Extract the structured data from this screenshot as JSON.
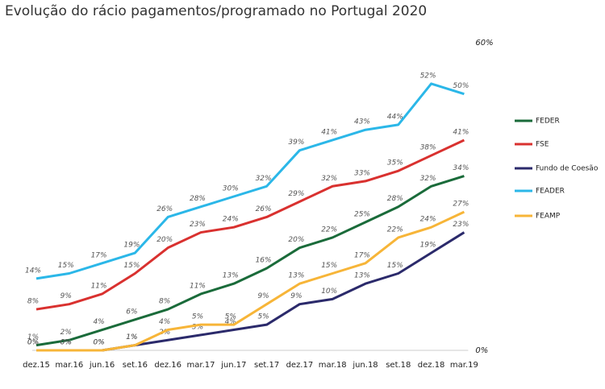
{
  "chart_data": {
    "type": "line",
    "title": "Evolução do rácio pagamentos/programado no Portugal 2020",
    "categories": [
      "dez.15",
      "mar.16",
      "jun.16",
      "set.16",
      "dez.16",
      "mar.17",
      "jun.17",
      "set.17",
      "dez.17",
      "mar.18",
      "jun.18",
      "set.18",
      "dez.18",
      "mar.19"
    ],
    "ylim": [
      0,
      60
    ],
    "yticks": [
      {
        "value": 0,
        "label": "0%"
      },
      {
        "value": 60,
        "label": "60%"
      }
    ],
    "grid": false,
    "legend": "right",
    "series": [
      {
        "name": "FEDER",
        "color": "#1a6b3a",
        "values": [
          1,
          2,
          4,
          6,
          8,
          11,
          13,
          16,
          20,
          22,
          25,
          28,
          32,
          34
        ],
        "value_labels": [
          "1%",
          "2%",
          "4%",
          "6%",
          "8%",
          "11%",
          "13%",
          "16%",
          "20%",
          "22%",
          "25%",
          "28%",
          "32%",
          "34%"
        ]
      },
      {
        "name": "FSE",
        "color": "#d9312f",
        "values": [
          8,
          9,
          11,
          15,
          20,
          23,
          24,
          26,
          29,
          32,
          33,
          35,
          38,
          41
        ],
        "value_labels": [
          "8%",
          "9%",
          "11%",
          "15%",
          "20%",
          "23%",
          "24%",
          "26%",
          "29%",
          "32%",
          "33%",
          "35%",
          "38%",
          "41%"
        ]
      },
      {
        "name": "Fundo de Coesão",
        "color": "#2b2a6b",
        "values": [
          0,
          0,
          0,
          1,
          2,
          3,
          4,
          5,
          9,
          10,
          13,
          15,
          19,
          23
        ],
        "value_labels": [
          "0%",
          "0%",
          "0%",
          "1%",
          "2%",
          "3%",
          "4%",
          "5%",
          "9%",
          "10%",
          "13%",
          "15%",
          "19%",
          "23%"
        ]
      },
      {
        "name": "FEADER",
        "color": "#2bb7e8",
        "values": [
          14,
          15,
          17,
          19,
          26,
          28,
          30,
          32,
          39,
          41,
          43,
          44,
          52,
          50
        ],
        "value_labels": [
          "14%",
          "15%",
          "17%",
          "19%",
          "26%",
          "28%",
          "30%",
          "32%",
          "39%",
          "41%",
          "43%",
          "44%",
          "52%",
          "50%"
        ]
      },
      {
        "name": "FEAMP",
        "color": "#f7b538",
        "values": [
          0,
          0,
          0,
          1,
          4,
          5,
          5,
          9,
          13,
          15,
          17,
          22,
          24,
          27
        ],
        "value_labels": [
          "0%",
          "0%",
          "0%",
          "1%",
          "4%",
          "5%",
          "5%",
          "9%",
          "13%",
          "15%",
          "17%",
          "22%",
          "24%",
          "27%"
        ]
      }
    ]
  }
}
